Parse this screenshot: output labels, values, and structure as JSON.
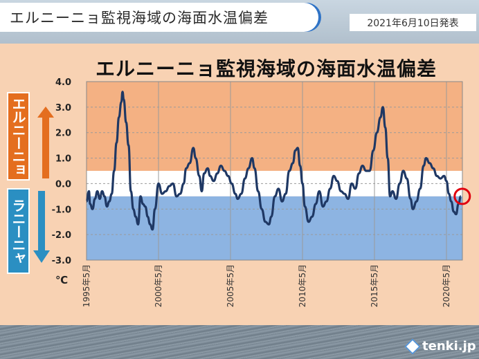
{
  "header": {
    "banner_title": "エルニーニョ監視海域の海面水温偏差",
    "date": "2021年6月10日発表"
  },
  "badges": {
    "el_nino": "エルニーニョ",
    "la_nina": "ラニーニャ"
  },
  "logo": {
    "text": "tenki.jp"
  },
  "colors": {
    "el_nino_band": "#f4b183",
    "normal_band": "#ffffff",
    "la_nina_band": "#8db4e2",
    "line": "#1f3864",
    "marker": "#e0000f",
    "el_nino_arrow": "#e46e1f",
    "la_nina_arrow": "#2b8fc2"
  },
  "chart_data": {
    "type": "line",
    "title": "エルニーニョ監視海域の海面水温偏差",
    "ylabel": "℃",
    "ylim": [
      -3.0,
      4.0
    ],
    "yticks": [
      "4.0",
      "3.0",
      "2.0",
      "1.0",
      "0.0",
      "-1.0",
      "-2.0",
      "-3.0"
    ],
    "xticks": [
      "1995年5月",
      "2000年5月",
      "2005年5月",
      "2010年5月",
      "2015年5月",
      "2020年5月"
    ],
    "bands": [
      {
        "from": 0.5,
        "to": 4.0,
        "name": "エルニーニョ"
      },
      {
        "from": -0.5,
        "to": 0.5,
        "name": "normal"
      },
      {
        "from": -3.0,
        "to": -0.5,
        "name": "ラニーニャ"
      }
    ],
    "grid": true,
    "series": [
      {
        "points": [
          [
            "1995-05",
            -0.7
          ],
          [
            "1995-07",
            -0.3
          ],
          [
            "1995-08",
            -0.8
          ],
          [
            "1995-10",
            -1.0
          ],
          [
            "1995-12",
            -0.6
          ],
          [
            "1996-02",
            -0.3
          ],
          [
            "1996-04",
            -0.6
          ],
          [
            "1996-06",
            -0.3
          ],
          [
            "1996-08",
            -0.5
          ],
          [
            "1996-10",
            -0.9
          ],
          [
            "1996-12",
            -0.7
          ],
          [
            "1997-02",
            -0.4
          ],
          [
            "1997-04",
            0.5
          ],
          [
            "1997-06",
            1.6
          ],
          [
            "1997-08",
            2.6
          ],
          [
            "1997-10",
            3.2
          ],
          [
            "1997-11",
            3.6
          ],
          [
            "1997-12",
            3.3
          ],
          [
            "1998-02",
            2.4
          ],
          [
            "1998-04",
            1.5
          ],
          [
            "1998-06",
            -0.3
          ],
          [
            "1998-08",
            -1.0
          ],
          [
            "1998-10",
            -1.3
          ],
          [
            "1998-12",
            -1.6
          ],
          [
            "1999-02",
            -0.5
          ],
          [
            "1999-04",
            -0.8
          ],
          [
            "1999-06",
            -0.9
          ],
          [
            "1999-08",
            -1.3
          ],
          [
            "1999-10",
            -1.6
          ],
          [
            "1999-12",
            -1.8
          ],
          [
            "2000-02",
            -1.0
          ],
          [
            "2000-05",
            0.0
          ],
          [
            "2000-08",
            -0.4
          ],
          [
            "2000-11",
            -0.3
          ],
          [
            "2001-02",
            -0.1
          ],
          [
            "2001-05",
            0.0
          ],
          [
            "2001-08",
            -0.5
          ],
          [
            "2001-11",
            -0.4
          ],
          [
            "2002-02",
            0.0
          ],
          [
            "2002-04",
            0.6
          ],
          [
            "2002-07",
            0.8
          ],
          [
            "2002-10",
            1.4
          ],
          [
            "2002-12",
            1.0
          ],
          [
            "2003-03",
            0.3
          ],
          [
            "2003-05",
            -0.3
          ],
          [
            "2003-07",
            0.4
          ],
          [
            "2003-10",
            0.6
          ],
          [
            "2003-12",
            0.3
          ],
          [
            "2004-03",
            0.1
          ],
          [
            "2004-06",
            0.4
          ],
          [
            "2004-09",
            0.7
          ],
          [
            "2004-12",
            0.5
          ],
          [
            "2005-03",
            0.3
          ],
          [
            "2005-06",
            0.0
          ],
          [
            "2005-09",
            -0.4
          ],
          [
            "2005-11",
            -0.6
          ],
          [
            "2006-02",
            -0.4
          ],
          [
            "2006-05",
            0.2
          ],
          [
            "2006-08",
            0.6
          ],
          [
            "2006-11",
            1.0
          ],
          [
            "2007-01",
            0.6
          ],
          [
            "2007-04",
            -0.3
          ],
          [
            "2007-07",
            -1.0
          ],
          [
            "2007-10",
            -1.5
          ],
          [
            "2008-01",
            -1.6
          ],
          [
            "2008-03",
            -1.3
          ],
          [
            "2008-06",
            -0.5
          ],
          [
            "2008-09",
            -0.2
          ],
          [
            "2008-12",
            -0.7
          ],
          [
            "2009-03",
            -0.4
          ],
          [
            "2009-06",
            0.5
          ],
          [
            "2009-09",
            0.8
          ],
          [
            "2009-11",
            1.3
          ],
          [
            "2010-01",
            1.4
          ],
          [
            "2010-03",
            0.7
          ],
          [
            "2010-05",
            0.0
          ],
          [
            "2010-07",
            -0.9
          ],
          [
            "2010-10",
            -1.5
          ],
          [
            "2011-01",
            -1.3
          ],
          [
            "2011-04",
            -0.8
          ],
          [
            "2011-07",
            -0.3
          ],
          [
            "2011-10",
            -0.9
          ],
          [
            "2012-01",
            -0.7
          ],
          [
            "2012-04",
            -0.2
          ],
          [
            "2012-07",
            0.3
          ],
          [
            "2012-10",
            0.1
          ],
          [
            "2013-01",
            -0.3
          ],
          [
            "2013-04",
            -0.4
          ],
          [
            "2013-07",
            -0.6
          ],
          [
            "2013-10",
            0.0
          ],
          [
            "2014-01",
            -0.2
          ],
          [
            "2014-04",
            0.4
          ],
          [
            "2014-07",
            0.7
          ],
          [
            "2014-10",
            0.5
          ],
          [
            "2015-01",
            0.5
          ],
          [
            "2015-04",
            1.3
          ],
          [
            "2015-07",
            2.0
          ],
          [
            "2015-10",
            2.6
          ],
          [
            "2015-12",
            3.0
          ],
          [
            "2016-02",
            2.2
          ],
          [
            "2016-04",
            1.0
          ],
          [
            "2016-06",
            -0.5
          ],
          [
            "2016-08",
            -0.3
          ],
          [
            "2016-11",
            -0.6
          ],
          [
            "2017-02",
            0.0
          ],
          [
            "2017-05",
            0.5
          ],
          [
            "2017-08",
            0.2
          ],
          [
            "2017-11",
            -0.6
          ],
          [
            "2018-01",
            -1.0
          ],
          [
            "2018-04",
            -0.7
          ],
          [
            "2018-07",
            -0.2
          ],
          [
            "2018-10",
            0.7
          ],
          [
            "2018-12",
            1.0
          ],
          [
            "2019-03",
            0.8
          ],
          [
            "2019-06",
            0.6
          ],
          [
            "2019-09",
            0.3
          ],
          [
            "2019-12",
            0.2
          ],
          [
            "2020-03",
            0.3
          ],
          [
            "2020-05",
            0.1
          ],
          [
            "2020-07",
            -0.4
          ],
          [
            "2020-09",
            -0.7
          ],
          [
            "2020-11",
            -1.1
          ],
          [
            "2021-01",
            -1.2
          ],
          [
            "2021-03",
            -0.8
          ],
          [
            "2021-05",
            -0.5
          ]
        ]
      }
    ],
    "marker": {
      "x": "2021-05",
      "y": -0.5
    }
  }
}
